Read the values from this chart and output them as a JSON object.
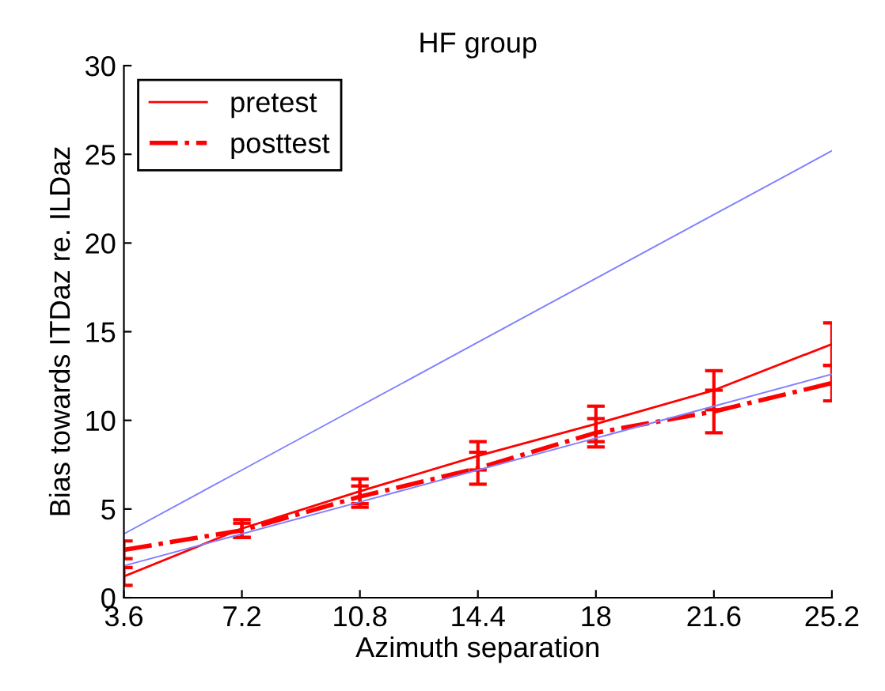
{
  "chart_data": {
    "type": "line",
    "title": "HF group",
    "xlabel": "Azimuth separation",
    "ylabel": "Bias towards ITDaz re. ILDaz",
    "x": [
      3.6,
      7.2,
      10.8,
      14.4,
      18,
      21.6,
      25.2
    ],
    "series": [
      {
        "name": "pretest",
        "color": "#ff0000",
        "line_style": "solid",
        "values": [
          1.2,
          3.9,
          6.0,
          8.0,
          9.8,
          11.7,
          14.3
        ],
        "errors": [
          0.5,
          0.5,
          0.7,
          0.8,
          1.0,
          1.1,
          1.2
        ]
      },
      {
        "name": "posttest",
        "color": "#ff0000",
        "line_style": "dashdot",
        "values": [
          2.7,
          3.8,
          5.7,
          7.3,
          9.3,
          10.5,
          12.1
        ],
        "errors": [
          0.5,
          0.4,
          0.6,
          0.9,
          0.8,
          1.2,
          1.0
        ]
      },
      {
        "color": "#8080ff",
        "line_style": "solid",
        "values": [
          3.6,
          7.2,
          10.8,
          14.4,
          18,
          21.6,
          25.2
        ]
      },
      {
        "color": "#8080ff",
        "line_style": "solid",
        "values": [
          1.8,
          3.6,
          5.4,
          7.2,
          9,
          10.8,
          12.6
        ]
      }
    ],
    "xlim": [
      3.6,
      25.2
    ],
    "xticks": [
      3.6,
      7.2,
      10.8,
      14.4,
      18,
      21.6,
      25.2
    ],
    "ylim": [
      0,
      30
    ],
    "yticks": [
      0,
      5,
      10,
      15,
      20,
      25,
      30
    ],
    "grid": false,
    "legend": "top left"
  }
}
